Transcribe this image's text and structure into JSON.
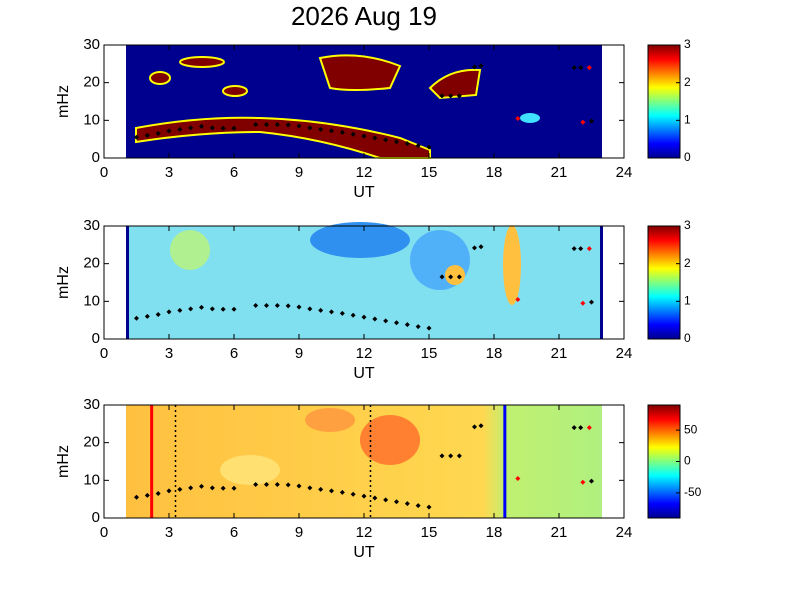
{
  "chart_data": [
    {
      "type": "spectrogram",
      "title": "2026 Aug 19",
      "xlabel": "UT",
      "ylabel": "mHz",
      "xlim": [
        0,
        24
      ],
      "xticks": [
        0,
        3,
        6,
        9,
        12,
        15,
        18,
        21,
        24
      ],
      "ylim": [
        0,
        30
      ],
      "yticks": [
        0,
        10,
        20,
        30
      ],
      "clim": [
        0,
        3
      ],
      "cticks": [
        0,
        1,
        2,
        3
      ],
      "series": [
        {
          "color": "#000000",
          "x": [
            1.5,
            2,
            2.5,
            3,
            3.5,
            4,
            4.5,
            5,
            5.5,
            6,
            7,
            7.5,
            8,
            8.5,
            9,
            9.5,
            10,
            10.5,
            11,
            11.5,
            12,
            12.5,
            13,
            13.5,
            14,
            14.5,
            15,
            15.6,
            16,
            16.4,
            17.1,
            17.4,
            21.7,
            22,
            22.5
          ],
          "values": [
            5.5,
            6,
            6.5,
            7.2,
            7.6,
            8,
            8.4,
            8,
            7.9,
            7.9,
            8.9,
            8.9,
            8.9,
            8.8,
            8.5,
            8,
            7.6,
            7.2,
            6.8,
            6.3,
            5.8,
            5.3,
            4.8,
            4.3,
            3.8,
            3.3,
            2.9,
            16.5,
            16.5,
            16.5,
            24.2,
            24.5,
            24,
            24,
            9.8
          ]
        },
        {
          "color": "#ff0000",
          "x": [
            19.1,
            22.1,
            22.4
          ],
          "values": [
            10.5,
            9.5,
            24
          ]
        }
      ]
    },
    {
      "type": "spectrogram",
      "xlabel": "UT",
      "ylabel": "mHz",
      "xlim": [
        0,
        24
      ],
      "xticks": [
        0,
        3,
        6,
        9,
        12,
        15,
        18,
        21,
        24
      ],
      "ylim": [
        0,
        30
      ],
      "yticks": [
        0,
        10,
        20,
        30
      ],
      "clim": [
        0,
        3
      ],
      "cticks": [
        0,
        1,
        2,
        3
      ],
      "series": [
        {
          "color": "#000000",
          "x": [
            1.5,
            2,
            2.5,
            3,
            3.5,
            4,
            4.5,
            5,
            5.5,
            6,
            7,
            7.5,
            8,
            8.5,
            9,
            9.5,
            10,
            10.5,
            11,
            11.5,
            12,
            12.5,
            13,
            13.5,
            14,
            14.5,
            15,
            15.6,
            16,
            16.4,
            17.1,
            17.4,
            21.7,
            22,
            22.5
          ],
          "values": [
            5.5,
            6,
            6.5,
            7.2,
            7.6,
            8,
            8.4,
            8,
            7.9,
            7.9,
            8.9,
            8.9,
            8.9,
            8.8,
            8.5,
            8,
            7.6,
            7.2,
            6.8,
            6.3,
            5.8,
            5.3,
            4.8,
            4.3,
            3.8,
            3.3,
            2.9,
            16.5,
            16.5,
            16.5,
            24.2,
            24.5,
            24,
            24,
            9.8
          ]
        },
        {
          "color": "#ff0000",
          "x": [
            19.1,
            22.1,
            22.4
          ],
          "values": [
            10.5,
            9.5,
            24
          ]
        }
      ]
    },
    {
      "type": "spectrogram",
      "xlabel": "UT",
      "ylabel": "mHz",
      "xlim": [
        0,
        24
      ],
      "xticks": [
        0,
        3,
        6,
        9,
        12,
        15,
        18,
        21,
        24
      ],
      "ylim": [
        0,
        30
      ],
      "yticks": [
        0,
        10,
        20,
        30
      ],
      "clim": [
        -90,
        90
      ],
      "cticks": [
        -50,
        0,
        50
      ],
      "vlines": {
        "x": [
          2.2,
          3.3,
          12.3,
          18.5
        ],
        "colors": [
          "#ff0000",
          "#000000",
          "#000000",
          "#0000ff"
        ],
        "styles": [
          "solid",
          "dotted",
          "dotted",
          "solid"
        ]
      },
      "series": [
        {
          "color": "#000000",
          "x": [
            1.5,
            2,
            2.5,
            3,
            3.5,
            4,
            4.5,
            5,
            5.5,
            6,
            7,
            7.5,
            8,
            8.5,
            9,
            9.5,
            10,
            10.5,
            11,
            11.5,
            12,
            12.5,
            13,
            13.5,
            14,
            14.5,
            15,
            15.6,
            16,
            16.4,
            17.1,
            17.4,
            21.7,
            22,
            22.5
          ],
          "values": [
            5.5,
            6,
            6.5,
            7.2,
            7.6,
            8,
            8.4,
            8,
            7.9,
            7.9,
            8.9,
            8.9,
            8.9,
            8.8,
            8.5,
            8,
            7.6,
            7.2,
            6.8,
            6.3,
            5.8,
            5.3,
            4.8,
            4.3,
            3.8,
            3.3,
            2.9,
            16.5,
            16.5,
            16.5,
            24.2,
            24.5,
            24,
            24,
            9.8
          ]
        },
        {
          "color": "#ff0000",
          "x": [
            19.1,
            22.1,
            22.4
          ],
          "values": [
            10.5,
            9.5,
            24
          ]
        }
      ]
    }
  ]
}
